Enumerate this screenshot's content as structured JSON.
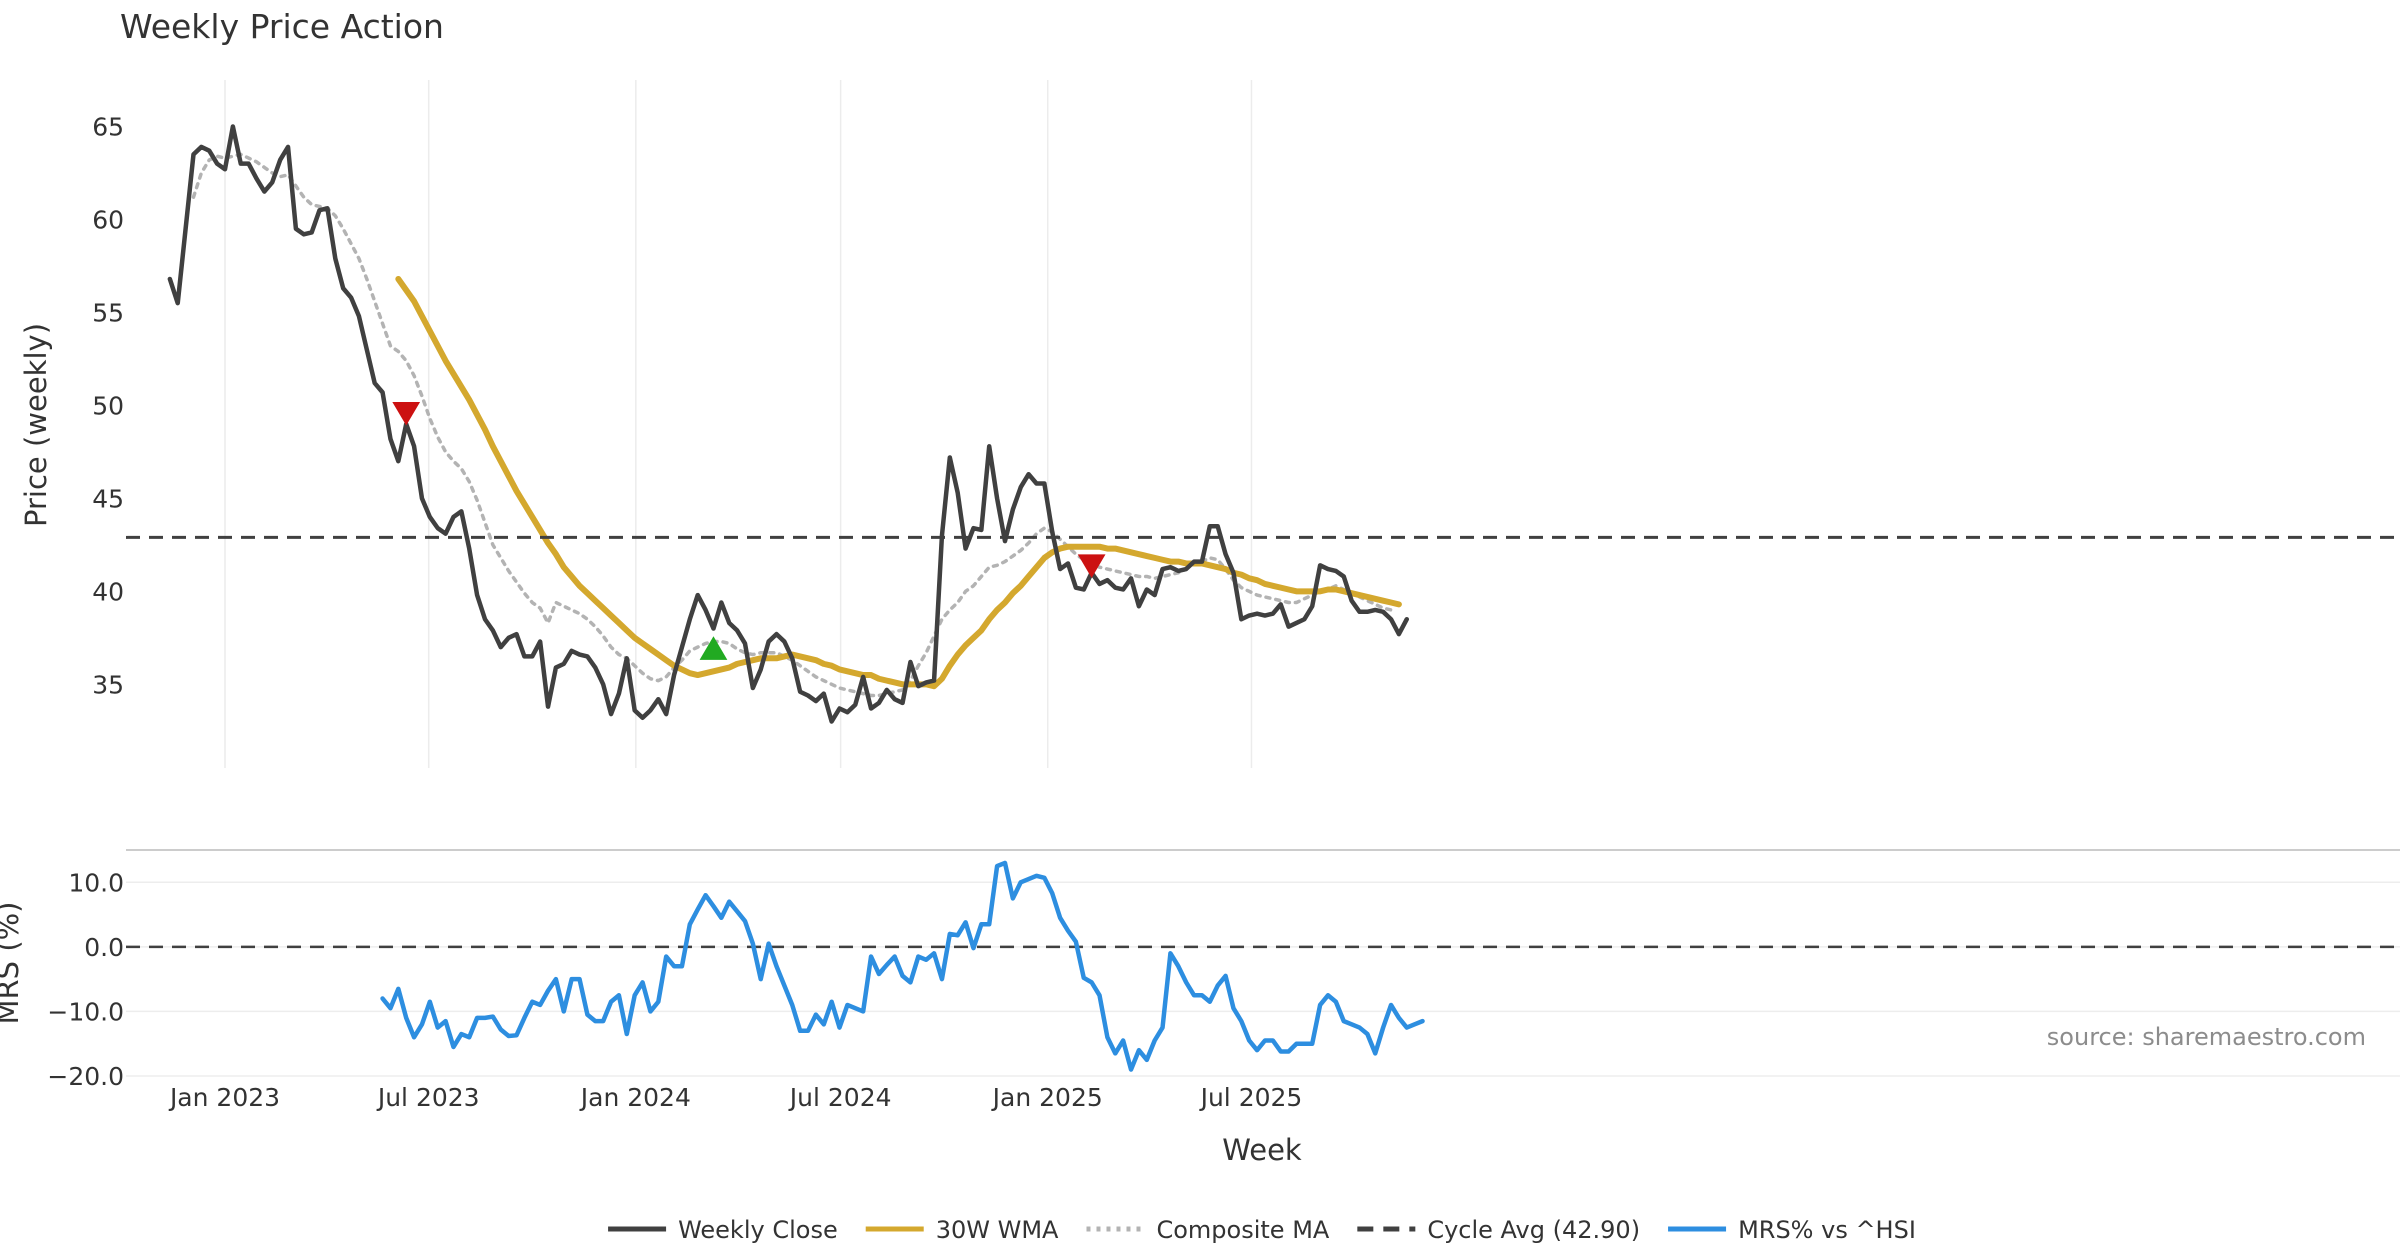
{
  "chart_data": [
    {
      "type": "line",
      "title": "Weekly Price Action",
      "xlabel": "",
      "ylabel": "Price (weekly)",
      "ylim": [
        30.5,
        67.5
      ],
      "yticks": [
        35,
        40,
        45,
        50,
        55,
        60,
        65
      ],
      "x_start": "2022-11-13",
      "x_interval_days": 7,
      "series": [
        {
          "name": "Weekly Close",
          "color": "#404040",
          "style": "solid",
          "values": [
            56.8,
            55.5,
            59.5,
            63.5,
            63.9,
            63.7,
            63.0,
            62.7,
            65.0,
            63.0,
            63.0,
            62.2,
            61.5,
            62.0,
            63.2,
            63.9,
            59.5,
            59.2,
            59.3,
            60.5,
            60.6,
            57.9,
            56.3,
            55.8,
            54.8,
            53.0,
            51.2,
            50.7,
            48.2,
            47.0,
            49.0,
            47.8,
            45.0,
            44.0,
            43.4,
            43.1,
            44.0,
            44.3,
            42.3,
            39.8,
            38.5,
            37.9,
            37.0,
            37.5,
            37.7,
            36.5,
            36.5,
            37.3,
            33.8,
            35.9,
            36.1,
            36.8,
            36.6,
            36.5,
            35.9,
            35.0,
            33.4,
            34.5,
            36.4,
            33.6,
            33.2,
            33.6,
            34.2,
            33.4,
            35.5,
            37.0,
            38.5,
            39.8,
            39.0,
            38.0,
            39.4,
            38.3,
            37.9,
            37.2,
            34.8,
            35.8,
            37.3,
            37.7,
            37.3,
            36.4,
            34.6,
            34.4,
            34.1,
            34.5,
            33.0,
            33.7,
            33.5,
            33.9,
            35.4,
            33.7,
            34.0,
            34.7,
            34.2,
            34.0,
            36.2,
            34.9,
            35.1,
            35.2,
            43.0,
            47.2,
            45.3,
            42.3,
            43.4,
            43.3,
            47.8,
            45.0,
            42.7,
            44.4,
            45.6,
            46.3,
            45.8,
            45.8,
            43.2,
            41.2,
            41.5,
            40.2,
            40.1,
            41.0,
            40.4,
            40.6,
            40.2,
            40.1,
            40.7,
            39.2,
            40.1,
            39.8,
            41.2,
            41.3,
            41.1,
            41.2,
            41.6,
            41.6,
            43.5,
            43.5,
            42.0,
            41.0,
            38.5,
            38.7,
            38.8,
            38.7,
            38.8,
            39.3,
            38.1,
            38.3,
            38.5,
            39.2,
            41.4,
            41.2,
            41.1,
            40.8,
            39.5,
            38.9,
            38.9,
            39.0,
            38.9,
            38.5,
            37.7,
            38.5
          ]
        },
        {
          "name": "30W WMA",
          "color": "#d4a82e",
          "style": "solid",
          "values": [
            null,
            null,
            null,
            null,
            null,
            null,
            null,
            null,
            null,
            null,
            null,
            null,
            null,
            null,
            null,
            null,
            null,
            null,
            null,
            null,
            null,
            null,
            null,
            null,
            null,
            null,
            null,
            null,
            null,
            56.8,
            56.2,
            55.6,
            54.8,
            54.0,
            53.2,
            52.4,
            51.7,
            51.0,
            50.3,
            49.5,
            48.7,
            47.8,
            47.0,
            46.2,
            45.4,
            44.7,
            44.0,
            43.3,
            42.6,
            42.0,
            41.3,
            40.8,
            40.3,
            39.9,
            39.5,
            39.1,
            38.7,
            38.3,
            37.9,
            37.5,
            37.2,
            36.9,
            36.6,
            36.3,
            36.0,
            35.8,
            35.6,
            35.5,
            35.6,
            35.7,
            35.8,
            35.9,
            36.1,
            36.2,
            36.3,
            36.4,
            36.4,
            36.4,
            36.5,
            36.6,
            36.5,
            36.4,
            36.3,
            36.1,
            36.0,
            35.8,
            35.7,
            35.6,
            35.5,
            35.5,
            35.3,
            35.2,
            35.1,
            35.0,
            35.0,
            35.0,
            35.0,
            34.9,
            35.3,
            36.0,
            36.6,
            37.1,
            37.5,
            37.9,
            38.5,
            39.0,
            39.4,
            39.9,
            40.3,
            40.8,
            41.3,
            41.8,
            42.1,
            42.3,
            42.4,
            42.4,
            42.4,
            42.4,
            42.4,
            42.3,
            42.3,
            42.2,
            42.1,
            42.0,
            41.9,
            41.8,
            41.7,
            41.6,
            41.6,
            41.5,
            41.5,
            41.5,
            41.4,
            41.3,
            41.2,
            41.0,
            40.9,
            40.7,
            40.6,
            40.4,
            40.3,
            40.2,
            40.1,
            40.0,
            40.0,
            40.0,
            40.0,
            40.1,
            40.1,
            40.0,
            39.9,
            39.8,
            39.7,
            39.6,
            39.5,
            39.4,
            39.3
          ]
        },
        {
          "name": "Composite MA",
          "color": "#b3b3b3",
          "style": "dotted",
          "values": [
            null,
            null,
            null,
            61.2,
            62.5,
            63.2,
            63.4,
            63.3,
            63.4,
            63.5,
            63.3,
            63.1,
            62.8,
            62.5,
            62.3,
            62.4,
            61.8,
            61.2,
            60.8,
            60.7,
            60.6,
            60.2,
            59.5,
            58.7,
            57.9,
            56.8,
            55.6,
            54.4,
            53.2,
            52.9,
            52.4,
            51.6,
            50.5,
            49.3,
            48.3,
            47.5,
            47.0,
            46.6,
            45.9,
            44.9,
            43.7,
            42.5,
            41.8,
            41.1,
            40.5,
            39.9,
            39.4,
            39.1,
            38.3,
            39.4,
            39.2,
            39.0,
            38.8,
            38.5,
            38.1,
            37.6,
            37.0,
            36.6,
            36.4,
            36.0,
            35.6,
            35.3,
            35.2,
            35.4,
            35.9,
            36.3,
            36.8,
            37.0,
            37.2,
            37.3,
            37.3,
            37.2,
            36.9,
            36.7,
            36.6,
            36.7,
            36.7,
            36.7,
            36.5,
            36.3,
            36.0,
            35.7,
            35.4,
            35.2,
            35.0,
            34.8,
            34.7,
            34.6,
            34.5,
            34.4,
            34.4,
            34.5,
            34.6,
            34.7,
            35.2,
            36.0,
            36.7,
            37.6,
            38.5,
            39.0,
            39.4,
            40.0,
            40.3,
            40.8,
            41.3,
            41.4,
            41.6,
            41.9,
            42.2,
            42.6,
            43.1,
            43.4,
            43.2,
            42.8,
            42.4,
            42.0,
            41.7,
            41.5,
            41.3,
            41.2,
            41.1,
            41.0,
            40.9,
            40.8,
            40.8,
            40.7,
            40.8,
            40.9,
            41.0,
            41.2,
            41.5,
            41.6,
            41.8,
            41.7,
            41.2,
            40.6,
            40.2,
            40.0,
            39.8,
            39.7,
            39.6,
            39.5,
            39.4,
            39.4,
            39.6,
            39.8,
            40.0,
            40.1,
            40.3,
            40.1,
            39.9,
            39.7,
            39.5,
            39.3,
            39.1,
            39.0
          ]
        },
        {
          "name": "Cycle Avg (42.90)",
          "color": "#404040",
          "style": "dashed",
          "value": 42.9
        }
      ],
      "markers": [
        {
          "type": "sell",
          "week_index": 30,
          "value": 49.6,
          "color": "#cc1111"
        },
        {
          "type": "buy",
          "week_index": 69,
          "value": 36.9,
          "color": "#22aa22"
        },
        {
          "type": "sell",
          "week_index": 117,
          "value": 41.4,
          "color": "#cc1111"
        }
      ],
      "annotations": []
    },
    {
      "type": "line",
      "title": "",
      "xlabel": "Week",
      "ylabel": "MRS (%)",
      "ylim": [
        -20.0,
        15.0
      ],
      "yticks": [
        -20.0,
        -10.0,
        0.0,
        10.0
      ],
      "ytick_labels": [
        "−20.0",
        "−10.0",
        "0.0",
        "10.0"
      ],
      "x_tick_labels": [
        "Jan 2023",
        "Jul 2023",
        "Jan 2024",
        "Jul 2024",
        "Jan 2025",
        "Jul 2025"
      ],
      "x_tick_dates": [
        "2023-01-01",
        "2023-07-01",
        "2024-01-01",
        "2024-07-01",
        "2025-01-01",
        "2025-07-01"
      ],
      "series": [
        {
          "name": "MRS% vs ^HSI",
          "color": "#2d8ee0",
          "style": "solid",
          "values": [
            null,
            null,
            null,
            null,
            null,
            null,
            null,
            null,
            null,
            null,
            null,
            null,
            null,
            null,
            null,
            null,
            null,
            null,
            null,
            null,
            null,
            null,
            null,
            null,
            null,
            null,
            null,
            -8.0,
            -9.5,
            -6.5,
            -11.0,
            -14.0,
            -12.0,
            -8.5,
            -12.5,
            -11.5,
            -15.5,
            -13.5,
            -14.0,
            -11.0,
            -11.0,
            -10.8,
            -12.8,
            -13.8,
            -13.7,
            -11.0,
            -8.5,
            -9.0,
            -6.8,
            -5.0,
            -10.0,
            -5.0,
            -5.0,
            -10.5,
            -11.5,
            -11.5,
            -8.5,
            -7.5,
            -13.5,
            -7.5,
            -5.5,
            -10.0,
            -8.5,
            -1.5,
            -3.0,
            -3.0,
            3.5,
            5.8,
            8.0,
            6.3,
            4.5,
            7.0,
            5.5,
            4.0,
            0.5,
            -5.0,
            0.5,
            -3.0,
            -6.0,
            -9.0,
            -13.0,
            -13.0,
            -10.5,
            -12.0,
            -8.5,
            -12.5,
            -9.0,
            -9.5,
            -10.0,
            -1.5,
            -4.2,
            -2.8,
            -1.5,
            -4.5,
            -5.5,
            -1.5,
            -2.0,
            -1.0,
            -5.0,
            2.0,
            1.8,
            3.8,
            -0.2,
            3.5,
            3.5,
            12.5,
            13.0,
            7.5,
            10.0,
            10.5,
            11.0,
            10.7,
            8.3,
            4.5,
            2.5,
            0.8,
            -4.8,
            -5.5,
            -7.5,
            -14.0,
            -16.5,
            -14.5,
            -19.0,
            -16.0,
            -17.5,
            -14.5,
            -12.5,
            -1.0,
            -3.0,
            -5.5,
            -7.5,
            -7.5,
            -8.5,
            -6.0,
            -4.5,
            -9.5,
            -11.5,
            -14.5,
            -16.0,
            -14.5,
            -14.5,
            -16.2,
            -16.2,
            -15.0,
            -15.0,
            -15.0,
            -9.0,
            -7.5,
            -8.5,
            -11.5,
            -12.0,
            -12.5,
            -13.5,
            -16.5,
            -12.5,
            -9.0,
            -11.0,
            -12.5,
            -12.0,
            -11.5
          ]
        },
        {
          "name": "MRS zero",
          "color": "#404040",
          "style": "dashed",
          "value": 0.0
        }
      ],
      "annotations": [
        {
          "text": "source: sharemaestro.com"
        }
      ]
    }
  ],
  "legend": {
    "placement": "bottom-center",
    "items": [
      {
        "label": "Weekly Close",
        "color": "#404040",
        "style": "solid"
      },
      {
        "label": "30W WMA",
        "color": "#d4a82e",
        "style": "solid"
      },
      {
        "label": "Composite MA",
        "color": "#b3b3b3",
        "style": "dotted"
      },
      {
        "label": "Cycle Avg (42.90)",
        "color": "#404040",
        "style": "dashed"
      },
      {
        "label": "MRS% vs ^HSI",
        "color": "#2d8ee0",
        "style": "solid"
      }
    ]
  }
}
